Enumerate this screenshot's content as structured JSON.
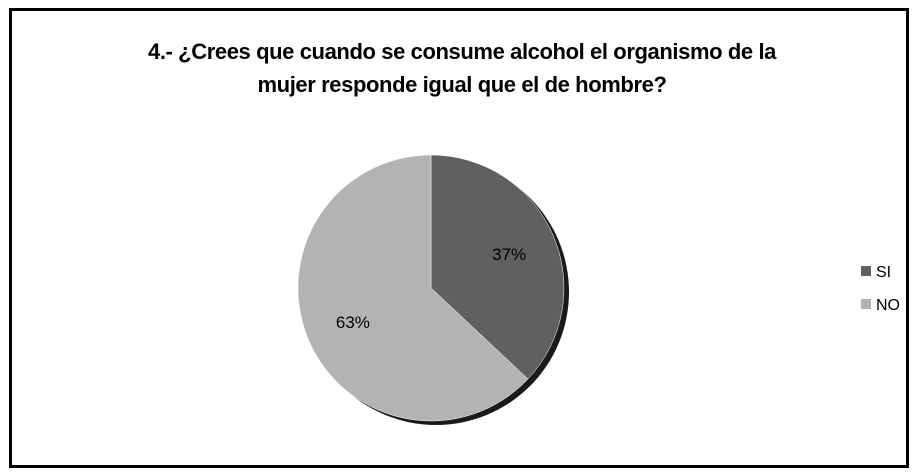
{
  "chart_data": {
    "type": "pie",
    "title": [
      "4.- ¿Crees que cuando se consume alcohol el organismo de la",
      "mujer responde igual que el de hombre?"
    ],
    "categories": [
      "SI",
      "NO"
    ],
    "values": [
      37,
      63
    ],
    "labels": [
      "37%",
      "63%"
    ],
    "colors": [
      "#606060",
      "#b3b3b3"
    ],
    "legend_position": "right"
  }
}
